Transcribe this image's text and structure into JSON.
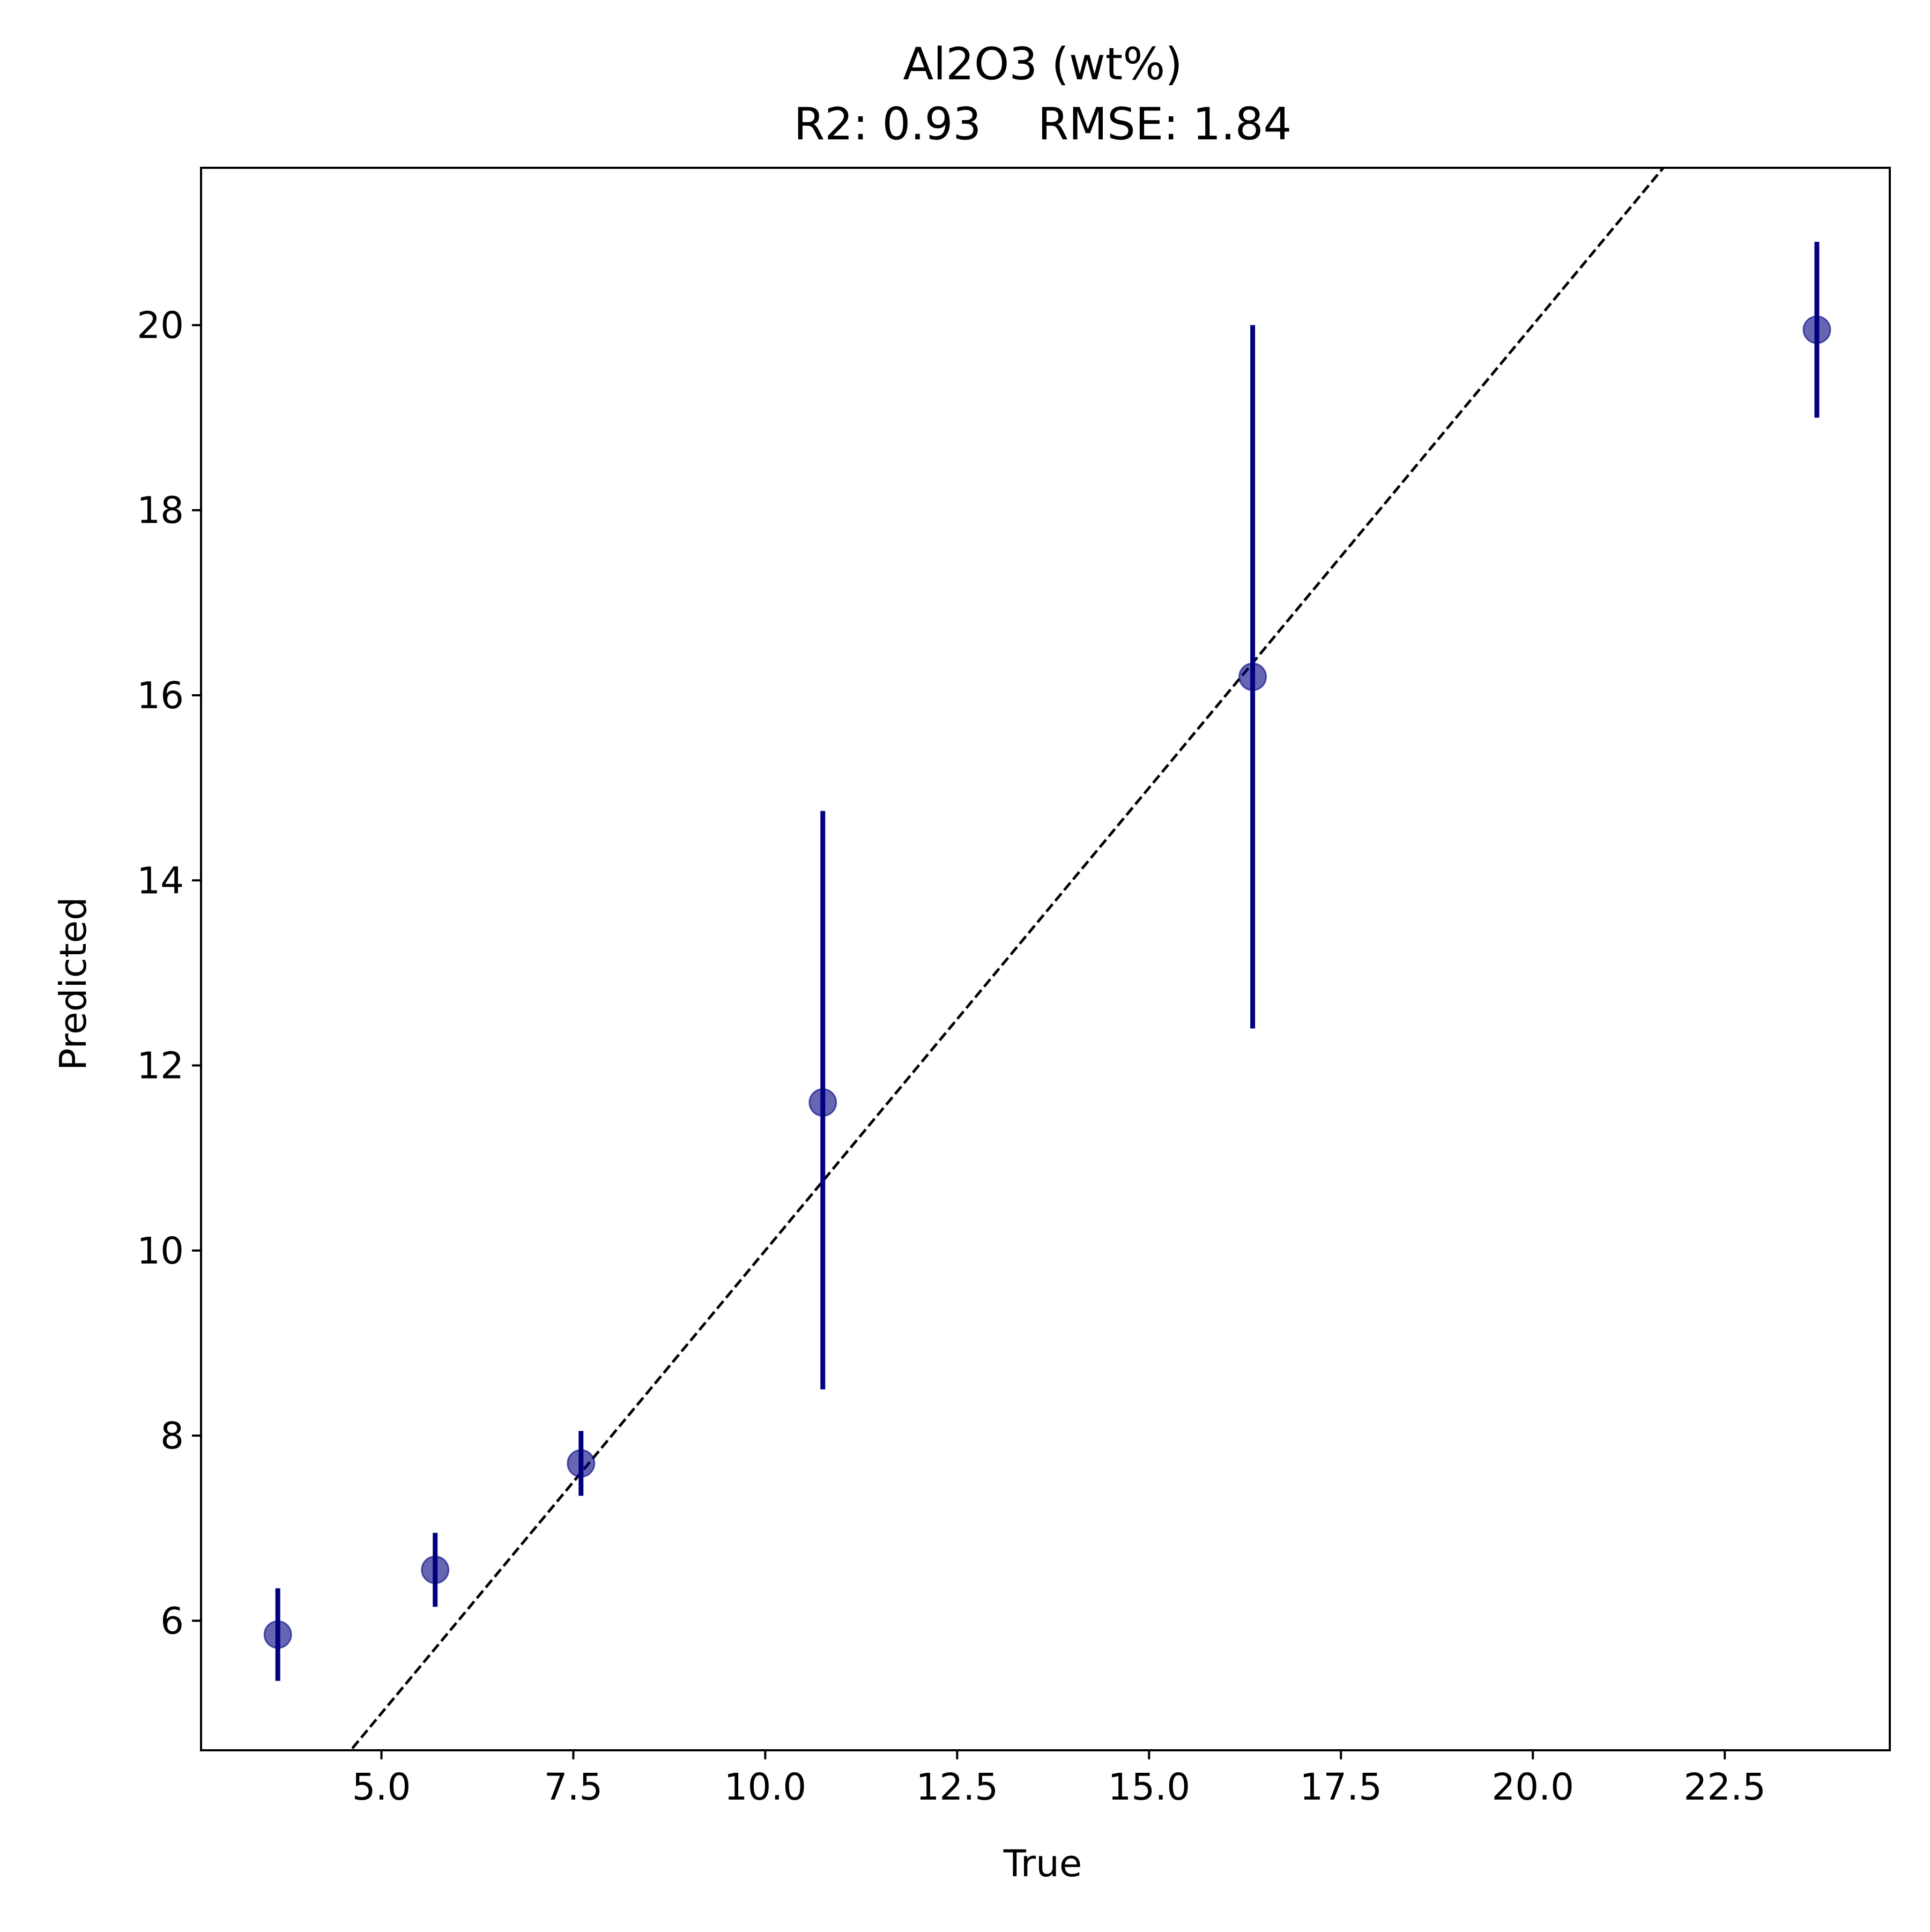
{
  "chart_data": {
    "type": "scatter",
    "title": "Al2O3 (wt%)",
    "subtitle": "R2: 0.93    RMSE: 1.84",
    "xlabel": "True",
    "ylabel": "Predicted",
    "xlim": [
      2.65,
      24.65
    ],
    "ylim": [
      4.6,
      21.7
    ],
    "xticks": [
      5.0,
      7.5,
      10.0,
      12.5,
      15.0,
      17.5,
      20.0,
      22.5
    ],
    "xtick_labels": [
      "5.0",
      "7.5",
      "10.0",
      "12.5",
      "15.0",
      "17.5",
      "20.0",
      "22.5"
    ],
    "yticks": [
      6,
      8,
      10,
      12,
      14,
      16,
      18,
      20
    ],
    "ytick_labels": [
      "6",
      "8",
      "10",
      "12",
      "14",
      "16",
      "18",
      "20"
    ],
    "grid": false,
    "legend": "none",
    "marker_color": "#000080",
    "errorbar_color": "#000080",
    "reference_line": {
      "style": "dashed",
      "color": "#000000",
      "slope": 1,
      "intercept": 0
    },
    "points": [
      {
        "x": 3.65,
        "y": 5.85,
        "yerr_low": 5.35,
        "yerr_high": 6.35
      },
      {
        "x": 5.7,
        "y": 6.55,
        "yerr_low": 6.15,
        "yerr_high": 6.95
      },
      {
        "x": 7.6,
        "y": 7.7,
        "yerr_low": 7.35,
        "yerr_high": 8.05
      },
      {
        "x": 10.75,
        "y": 11.6,
        "yerr_low": 8.5,
        "yerr_high": 14.75
      },
      {
        "x": 16.35,
        "y": 16.2,
        "yerr_low": 12.4,
        "yerr_high": 20.0
      },
      {
        "x": 23.7,
        "y": 19.95,
        "yerr_low": 19.0,
        "yerr_high": 20.9
      }
    ]
  }
}
